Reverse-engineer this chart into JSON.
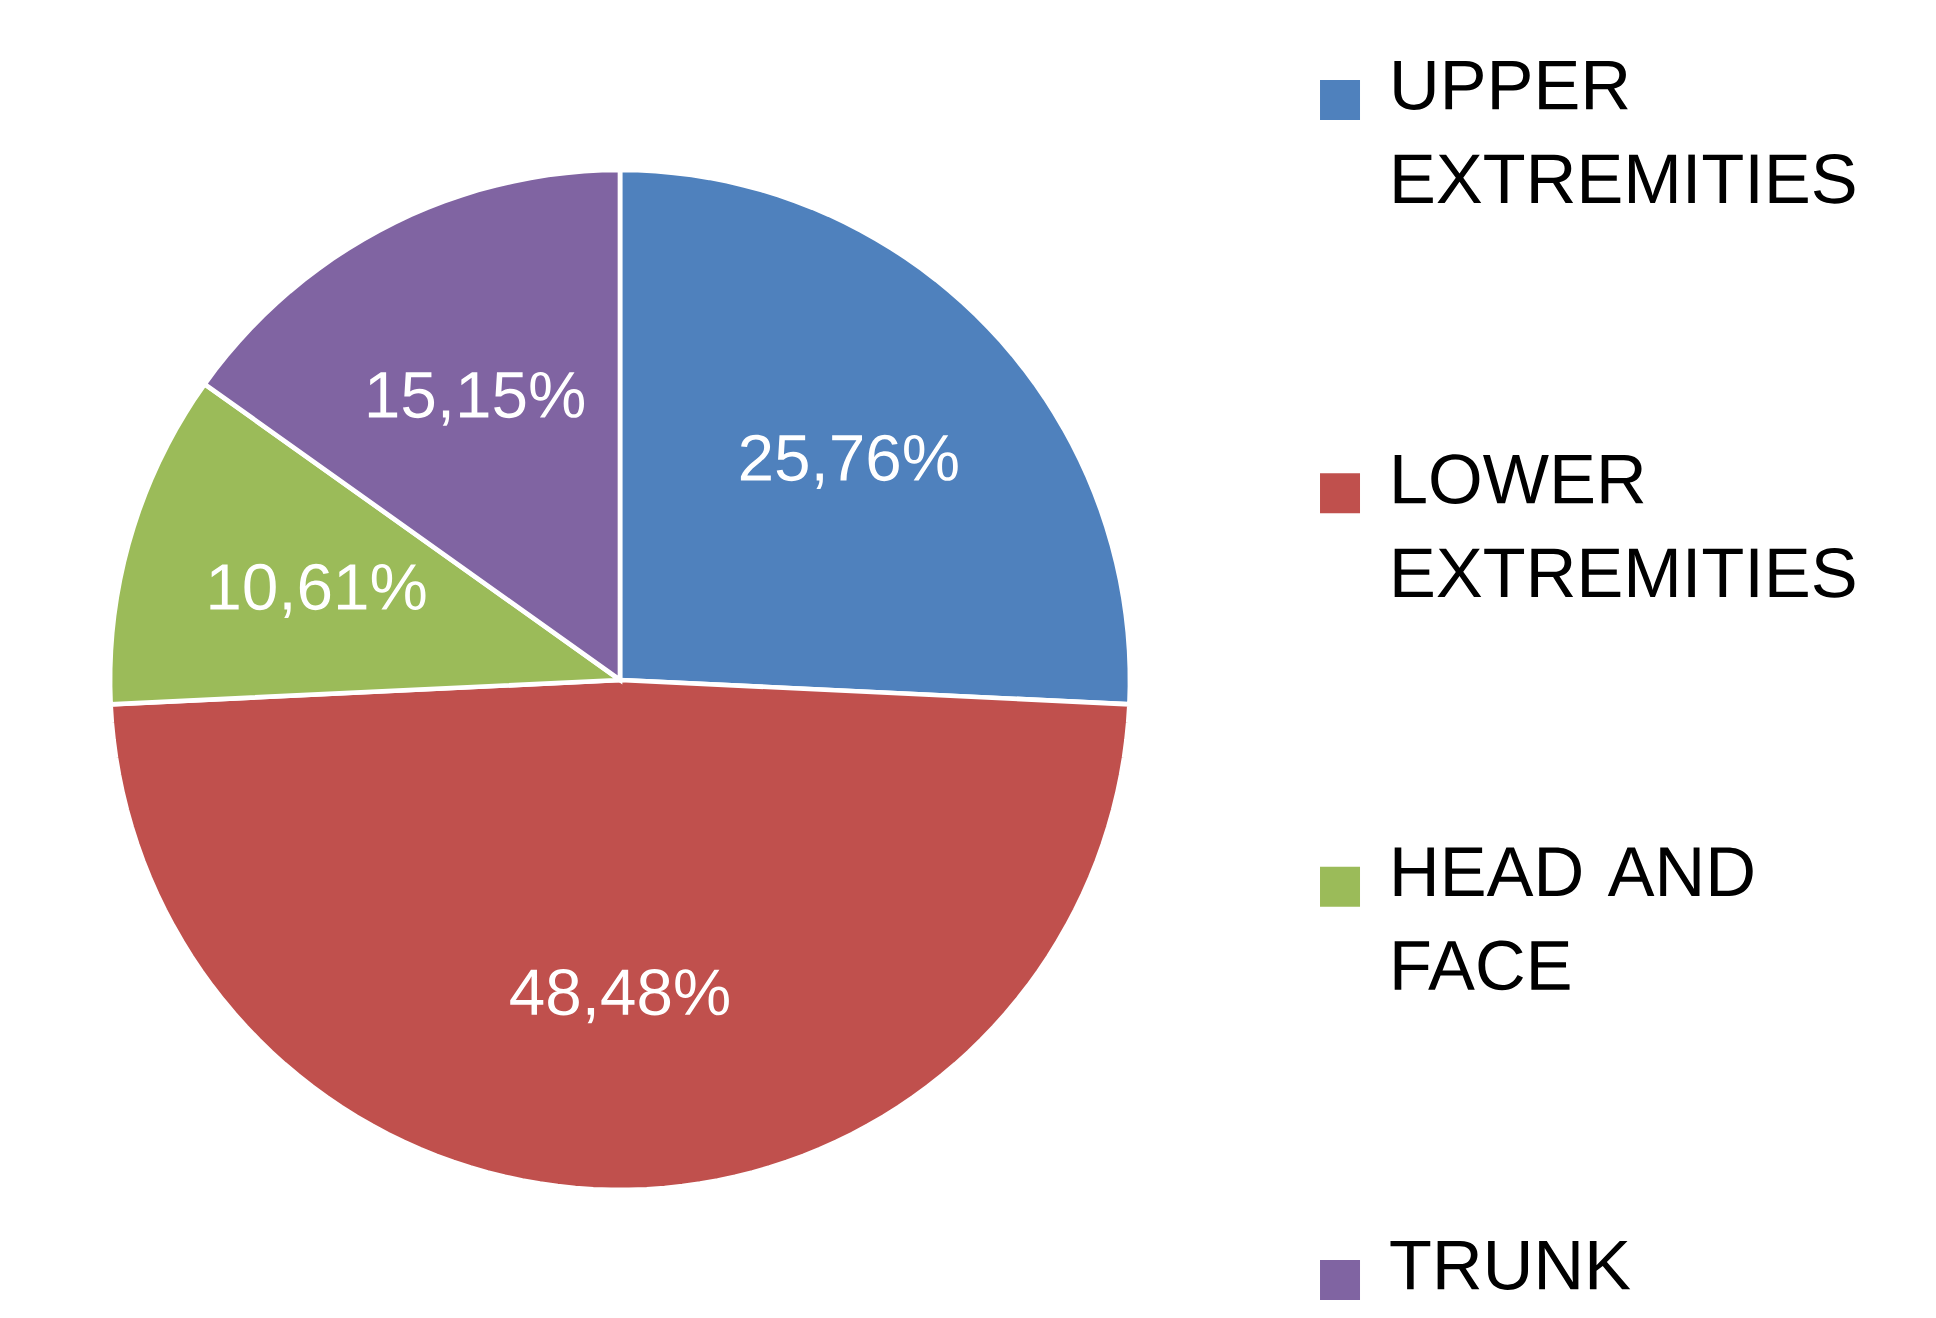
{
  "chart_data": {
    "type": "pie",
    "categories": [
      "UPPER EXTREMITIES",
      "LOWER EXTREMITIES",
      "HEAD AND FACE",
      "TRUNK"
    ],
    "values": [
      25.76,
      48.48,
      10.61,
      15.15
    ],
    "colors": [
      "#4f81bd",
      "#c0504d",
      "#9bbb59",
      "#8064a2"
    ],
    "value_labels": [
      "25,76%",
      "48,48%",
      "10,61%",
      "15,15%"
    ],
    "legend": "right"
  }
}
